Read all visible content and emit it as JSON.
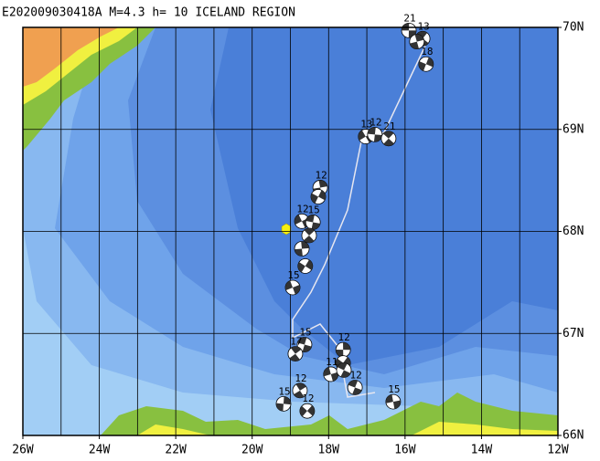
{
  "title": "E202009030418A M=4.3 h= 10 ICELAND REGION",
  "lon_range": [
    -26,
    -12
  ],
  "lat_range": [
    66,
    70
  ],
  "lon_ticks": [
    {
      "value": -26,
      "label": "26W"
    },
    {
      "value": -24,
      "label": "24W"
    },
    {
      "value": -22,
      "label": "22W"
    },
    {
      "value": -20,
      "label": "20W"
    },
    {
      "value": -18,
      "label": "18W"
    },
    {
      "value": -16,
      "label": "16W"
    },
    {
      "value": -14,
      "label": "14W"
    },
    {
      "value": -12,
      "label": "12W"
    }
  ],
  "lat_ticks": [
    {
      "value": 66,
      "label": "66N"
    },
    {
      "value": 67,
      "label": "67N"
    },
    {
      "value": 68,
      "label": "68N"
    },
    {
      "value": 69,
      "label": "69N"
    },
    {
      "value": 70,
      "label": "70N"
    }
  ],
  "events": [
    {
      "lon": -15.9,
      "lat": 69.97,
      "label": "21"
    },
    {
      "lon": -15.54,
      "lat": 69.89,
      "label": "13"
    },
    {
      "lon": -15.69,
      "lat": 69.86
    },
    {
      "lon": -15.45,
      "lat": 69.64,
      "label": "18"
    },
    {
      "lon": -17.03,
      "lat": 68.93,
      "label": "13"
    },
    {
      "lon": -16.79,
      "lat": 68.95,
      "label": "12"
    },
    {
      "lon": -16.43,
      "lat": 68.91,
      "label": "21"
    },
    {
      "lon": -18.22,
      "lat": 68.43,
      "label": "12"
    },
    {
      "lon": -18.27,
      "lat": 68.34
    },
    {
      "lon": -18.7,
      "lat": 68.1,
      "label": "12"
    },
    {
      "lon": -18.41,
      "lat": 68.09,
      "label": "15"
    },
    {
      "lon": -18.51,
      "lat": 67.96
    },
    {
      "lon": -18.7,
      "lat": 67.83
    },
    {
      "lon": -18.61,
      "lat": 67.66
    },
    {
      "lon": -18.94,
      "lat": 67.45,
      "label": "15"
    },
    {
      "lon": -18.63,
      "lat": 66.89,
      "label": "15"
    },
    {
      "lon": -18.87,
      "lat": 66.8,
      "label": "17"
    },
    {
      "lon": -17.62,
      "lat": 66.84,
      "label": "12"
    },
    {
      "lon": -17.62,
      "lat": 66.71
    },
    {
      "lon": -17.94,
      "lat": 66.6,
      "label": "11"
    },
    {
      "lon": -17.31,
      "lat": 66.47,
      "label": "12"
    },
    {
      "lon": -18.75,
      "lat": 66.44,
      "label": "12"
    },
    {
      "lon": -19.18,
      "lat": 66.31,
      "label": "15"
    },
    {
      "lon": -18.56,
      "lat": 66.24,
      "label": "12"
    },
    {
      "lon": -16.31,
      "lat": 66.33,
      "label": "15"
    },
    {
      "lon": -17.6,
      "lat": 66.64
    }
  ]
}
